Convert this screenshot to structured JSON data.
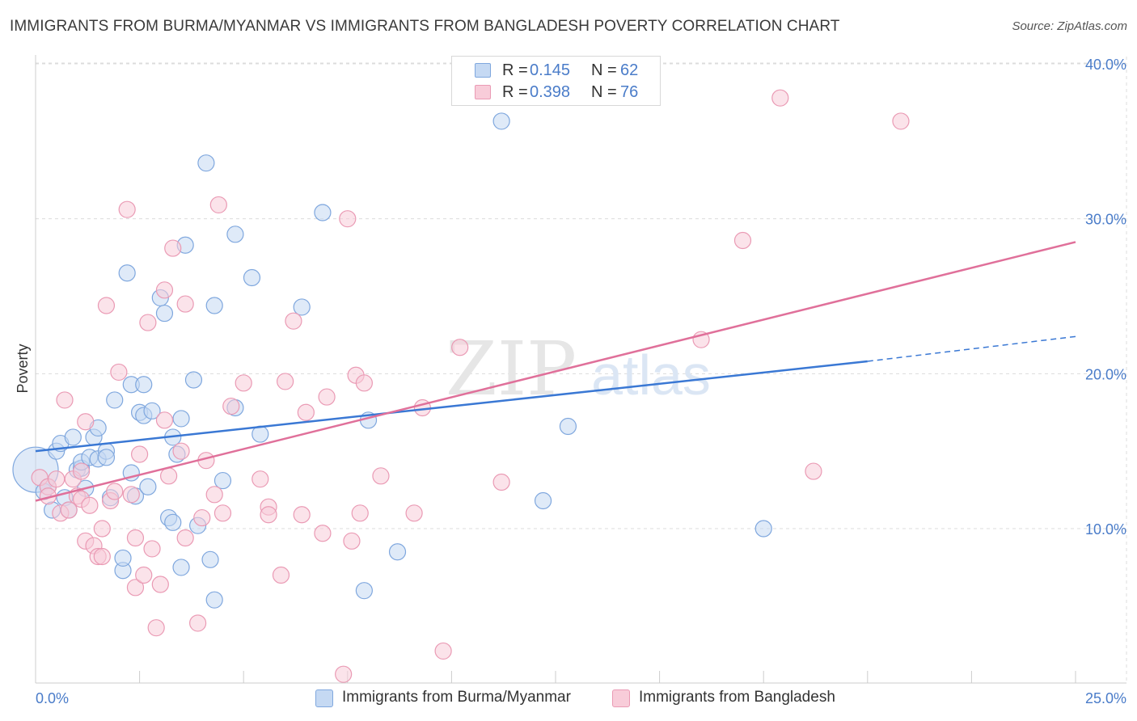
{
  "title": "IMMIGRANTS FROM BURMA/MYANMAR VS IMMIGRANTS FROM BANGLADESH POVERTY CORRELATION CHART",
  "source": "Source: ZipAtlas.com",
  "watermark": {
    "zip": "ZIP",
    "atlas": "atlas"
  },
  "legend": {
    "r_label": "R =",
    "n_label": "N =",
    "series": [
      {
        "r": "0.145",
        "n": "62",
        "fill": "#c5d9f3",
        "stroke": "#7fa7de"
      },
      {
        "r": "0.398",
        "n": "76",
        "fill": "#f8ccd9",
        "stroke": "#ea9ab4"
      }
    ]
  },
  "bottom_legend": [
    "Immigrants from Burma/Myanmar",
    "Immigrants from Bangladesh"
  ],
  "colors": {
    "blue_line": "#3a78d4",
    "pink_line": "#e0709a",
    "tick_text": "#4a7cc9",
    "grid": "#dcdcdc"
  },
  "chart_data": {
    "type": "scatter",
    "ylabel": "Poverty",
    "xlim": [
      0,
      25
    ],
    "ylim": [
      0,
      41
    ],
    "x_tick_labels": [
      "0.0%",
      "25.0%"
    ],
    "y_ticks": [
      10,
      20,
      30,
      40
    ],
    "y_tick_labels": [
      "10.0%",
      "20.0%",
      "30.0%",
      "40.0%"
    ],
    "grid": true,
    "series": [
      {
        "name": "Immigrants from Burma/Myanmar",
        "trend": {
          "x0": 0,
          "y0": 15.0,
          "x1": 20.0,
          "y1": 20.8,
          "dashed_to_x": 25.0,
          "dashed_to_y": 22.4
        },
        "points": [
          [
            0.0,
            13.8,
            28
          ],
          [
            0.2,
            12.4,
            10
          ],
          [
            0.3,
            12.7,
            10
          ],
          [
            0.4,
            11.2,
            10
          ],
          [
            0.5,
            15.0,
            10
          ],
          [
            0.6,
            15.5,
            10
          ],
          [
            0.7,
            12.0,
            10
          ],
          [
            0.8,
            11.2,
            10
          ],
          [
            0.9,
            15.9,
            10
          ],
          [
            1.0,
            13.8,
            10
          ],
          [
            1.1,
            13.9,
            10
          ],
          [
            1.1,
            14.3,
            10
          ],
          [
            1.2,
            12.6,
            10
          ],
          [
            1.3,
            14.6,
            10
          ],
          [
            1.4,
            15.9,
            10
          ],
          [
            1.5,
            14.5,
            10
          ],
          [
            1.5,
            16.5,
            10
          ],
          [
            1.7,
            15.0,
            10
          ],
          [
            1.7,
            14.6,
            10
          ],
          [
            1.8,
            12.0,
            10
          ],
          [
            1.9,
            18.3,
            10
          ],
          [
            2.1,
            7.3,
            10
          ],
          [
            2.1,
            8.1,
            10
          ],
          [
            2.2,
            26.5,
            10
          ],
          [
            2.3,
            13.6,
            10
          ],
          [
            2.3,
            19.3,
            10
          ],
          [
            2.4,
            12.1,
            10
          ],
          [
            2.5,
            17.5,
            10
          ],
          [
            2.6,
            19.3,
            10
          ],
          [
            2.6,
            17.3,
            10
          ],
          [
            2.7,
            12.7,
            10
          ],
          [
            2.8,
            17.6,
            10
          ],
          [
            3.0,
            24.9,
            10
          ],
          [
            3.1,
            23.9,
            10
          ],
          [
            3.2,
            10.7,
            10
          ],
          [
            3.3,
            10.4,
            10
          ],
          [
            3.3,
            15.9,
            10
          ],
          [
            3.4,
            14.8,
            10
          ],
          [
            3.5,
            7.5,
            10
          ],
          [
            3.5,
            17.1,
            10
          ],
          [
            3.6,
            28.3,
            10
          ],
          [
            3.8,
            19.6,
            10
          ],
          [
            3.9,
            10.2,
            10
          ],
          [
            4.1,
            33.6,
            10
          ],
          [
            4.2,
            8.0,
            10
          ],
          [
            4.3,
            24.4,
            10
          ],
          [
            4.3,
            5.4,
            10
          ],
          [
            4.5,
            13.1,
            10
          ],
          [
            4.8,
            29.0,
            10
          ],
          [
            4.8,
            17.8,
            10
          ],
          [
            5.2,
            26.2,
            10
          ],
          [
            5.4,
            16.1,
            10
          ],
          [
            6.4,
            24.3,
            10
          ],
          [
            6.9,
            30.4,
            10
          ],
          [
            7.9,
            6.0,
            10
          ],
          [
            8.0,
            17.0,
            10
          ],
          [
            8.7,
            8.5,
            10
          ],
          [
            11.2,
            36.3,
            10
          ],
          [
            12.2,
            11.8,
            10
          ],
          [
            12.8,
            16.6,
            10
          ],
          [
            17.5,
            10.0,
            10
          ],
          [
            20.0,
            13.0,
            0
          ]
        ]
      },
      {
        "name": "Immigrants from Bangladesh",
        "trend": {
          "x0": 0,
          "y0": 11.8,
          "x1": 25.0,
          "y1": 28.5
        },
        "points": [
          [
            0.1,
            13.3,
            10
          ],
          [
            0.3,
            12.7,
            10
          ],
          [
            0.3,
            12.1,
            10
          ],
          [
            0.5,
            13.2,
            10
          ],
          [
            0.6,
            11.0,
            10
          ],
          [
            0.7,
            18.3,
            10
          ],
          [
            0.8,
            11.2,
            10
          ],
          [
            0.9,
            13.2,
            10
          ],
          [
            1.0,
            12.1,
            10
          ],
          [
            1.1,
            11.9,
            10
          ],
          [
            1.1,
            13.7,
            10
          ],
          [
            1.2,
            9.2,
            10
          ],
          [
            1.2,
            16.9,
            10
          ],
          [
            1.3,
            11.5,
            10
          ],
          [
            1.4,
            8.9,
            10
          ],
          [
            1.5,
            8.2,
            10
          ],
          [
            1.6,
            10.0,
            10
          ],
          [
            1.6,
            8.2,
            10
          ],
          [
            1.7,
            24.4,
            10
          ],
          [
            1.8,
            11.8,
            10
          ],
          [
            1.9,
            12.4,
            10
          ],
          [
            2.0,
            20.1,
            10
          ],
          [
            2.2,
            30.6,
            10
          ],
          [
            2.3,
            12.2,
            10
          ],
          [
            2.4,
            9.4,
            10
          ],
          [
            2.4,
            6.2,
            10
          ],
          [
            2.5,
            14.8,
            10
          ],
          [
            2.6,
            7.0,
            10
          ],
          [
            2.7,
            23.3,
            10
          ],
          [
            2.8,
            8.7,
            10
          ],
          [
            2.9,
            3.6,
            10
          ],
          [
            3.0,
            6.4,
            10
          ],
          [
            3.1,
            25.4,
            10
          ],
          [
            3.1,
            17.0,
            10
          ],
          [
            3.2,
            13.4,
            10
          ],
          [
            3.3,
            28.1,
            10
          ],
          [
            3.5,
            15.0,
            10
          ],
          [
            3.6,
            9.4,
            10
          ],
          [
            3.6,
            24.5,
            10
          ],
          [
            3.9,
            3.9,
            10
          ],
          [
            4.0,
            10.7,
            10
          ],
          [
            4.1,
            14.4,
            10
          ],
          [
            4.3,
            12.2,
            10
          ],
          [
            4.4,
            30.9,
            10
          ],
          [
            4.5,
            11.0,
            10
          ],
          [
            4.7,
            17.9,
            10
          ],
          [
            5.0,
            19.4,
            10
          ],
          [
            5.4,
            13.2,
            10
          ],
          [
            5.6,
            11.4,
            10
          ],
          [
            5.6,
            10.9,
            10
          ],
          [
            5.9,
            7.0,
            10
          ],
          [
            6.0,
            19.5,
            10
          ],
          [
            6.2,
            23.4,
            10
          ],
          [
            6.4,
            10.9,
            10
          ],
          [
            6.5,
            17.5,
            10
          ],
          [
            6.9,
            9.7,
            10
          ],
          [
            7.0,
            18.5,
            10
          ],
          [
            7.4,
            0.6,
            10
          ],
          [
            7.5,
            30.0,
            10
          ],
          [
            7.6,
            9.2,
            10
          ],
          [
            7.7,
            19.9,
            10
          ],
          [
            7.8,
            11.0,
            10
          ],
          [
            7.9,
            19.4,
            10
          ],
          [
            8.3,
            13.4,
            10
          ],
          [
            9.1,
            11.0,
            10
          ],
          [
            9.3,
            17.8,
            10
          ],
          [
            9.8,
            2.1,
            10
          ],
          [
            10.2,
            21.7,
            10
          ],
          [
            11.2,
            13.0,
            10
          ],
          [
            16.0,
            22.2,
            10
          ],
          [
            17.0,
            28.6,
            10
          ],
          [
            17.9,
            37.8,
            10
          ],
          [
            18.7,
            13.7,
            10
          ],
          [
            20.8,
            36.3,
            10
          ],
          [
            25.0,
            28.5,
            0
          ],
          [
            0.0,
            12.0,
            0
          ]
        ]
      }
    ]
  }
}
